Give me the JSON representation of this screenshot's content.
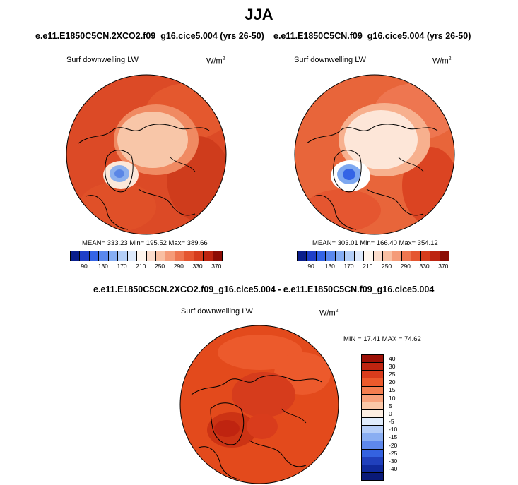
{
  "figure": {
    "title": "JJA",
    "panels": [
      {
        "subtitle": "e.e11.E1850C5CN.2XCO2.f09_g16.cice5.004 (yrs 26-50)",
        "variable": "Surf downwelling LW",
        "units": "W/m",
        "units_exp": "2",
        "stats": "MEAN= 333.23  Min= 195.52  Max= 389.66",
        "base_color": "#dc4a26",
        "pole_color": "#f8c6a8",
        "ice_color": "#fce8da"
      },
      {
        "subtitle": "e.e11.E1850C5CN.f09_g16.cice5.004 (yrs 26-50)",
        "variable": "Surf downwelling LW",
        "units": "W/m",
        "units_exp": "2",
        "stats": "MEAN= 303.01  Min= 166.40  Max= 354.12",
        "base_color": "#e8653a",
        "pole_color": "#fde6d8",
        "ice_color": "#ffffff"
      }
    ],
    "diff_panel": {
      "subtitle": "e.e11.E1850C5CN.2XCO2.f09_g16.cice5.004 - e.e11.E1850C5CN.f09_g16.cice5.004",
      "variable": "Surf downwelling LW",
      "units": "W/m",
      "units_exp": "2",
      "stats": "MIN = 17.41 MAX =  74.62",
      "base_color": "#e34a1c",
      "dark_color": "#cc3314"
    },
    "colorbar_top": {
      "ticks": [
        "90",
        "130",
        "170",
        "210",
        "250",
        "290",
        "330",
        "370"
      ],
      "colors": [
        "#0a1e8c",
        "#1f3fc8",
        "#3464e6",
        "#5a88ee",
        "#86aef4",
        "#b4cff8",
        "#deeafc",
        "#fff6ee",
        "#fcdccb",
        "#f9bfa2",
        "#f59b78",
        "#ee7650",
        "#e55630",
        "#d63c1c",
        "#bd2410",
        "#8c0c04"
      ]
    },
    "colorbar_diff": {
      "ticks": [
        "40",
        "30",
        "25",
        "20",
        "15",
        "10",
        "5",
        "0",
        "-5",
        "-10",
        "-15",
        "-20",
        "-25",
        "-30",
        "-40"
      ],
      "colors": [
        "#9c1006",
        "#bf2410",
        "#d93c1c",
        "#ec5a2c",
        "#f47e50",
        "#f8a27c",
        "#fbc8a8",
        "#fdeee2",
        "#e0ecfc",
        "#b6cef8",
        "#8aaef2",
        "#5e88ec",
        "#3462e0",
        "#2040bc",
        "#102a9c",
        "#0a1a78"
      ]
    }
  }
}
